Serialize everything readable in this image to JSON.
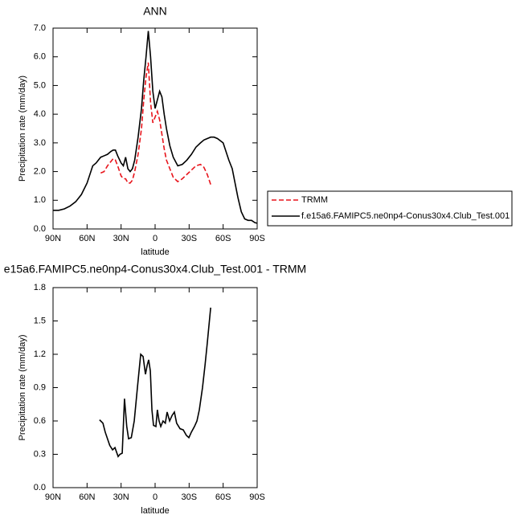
{
  "chart_data": [
    {
      "type": "line",
      "title": "ANN",
      "xlabel": "latitude",
      "ylabel": "Precipitation rate (mm/day)",
      "x": [
        90,
        85,
        80,
        75,
        70,
        65,
        60,
        55,
        52,
        50,
        48,
        45,
        42,
        39,
        37,
        35,
        33,
        30,
        28,
        26,
        24,
        22,
        20,
        18,
        15,
        12,
        10,
        8,
        6,
        4,
        2,
        0,
        -2,
        -4,
        -6,
        -8,
        -10,
        -13,
        -16,
        -20,
        -24,
        -28,
        -32,
        -36,
        -40,
        -43,
        -46,
        -49,
        -52,
        -55,
        -60,
        -65,
        -68,
        -70,
        -73,
        -76,
        -79,
        -82,
        -85,
        -88,
        -90
      ],
      "series": [
        {
          "name": "TRMM",
          "color": "#e8141b",
          "line_style": "dashed",
          "values": [
            null,
            null,
            null,
            null,
            null,
            null,
            null,
            null,
            null,
            null,
            1.95,
            2.0,
            2.2,
            2.35,
            2.45,
            2.4,
            2.2,
            1.85,
            1.75,
            1.75,
            1.6,
            1.6,
            1.7,
            2.0,
            2.6,
            3.5,
            4.5,
            5.3,
            5.8,
            4.4,
            3.7,
            3.9,
            4.1,
            3.8,
            3.3,
            2.8,
            2.4,
            2.1,
            1.8,
            1.65,
            1.75,
            1.9,
            2.05,
            2.2,
            2.25,
            2.15,
            1.9,
            1.55,
            null,
            null,
            null,
            null,
            null,
            null,
            null,
            null,
            null,
            null,
            null,
            null,
            null
          ]
        },
        {
          "name": "f.e15a6.FAMIPC5.ne0np4-Conus30x4.Club_Test.001",
          "color": "#000000",
          "line_style": "solid",
          "values": [
            0.65,
            0.65,
            0.7,
            0.8,
            0.95,
            1.2,
            1.6,
            2.2,
            2.3,
            2.4,
            2.5,
            2.55,
            2.6,
            2.7,
            2.75,
            2.75,
            2.55,
            2.3,
            2.2,
            2.5,
            2.1,
            2.0,
            2.1,
            2.4,
            3.2,
            4.2,
            5.2,
            6.0,
            6.9,
            6.0,
            4.8,
            4.2,
            4.5,
            4.8,
            4.6,
            4.0,
            3.5,
            2.9,
            2.5,
            2.2,
            2.25,
            2.4,
            2.6,
            2.85,
            3.0,
            3.1,
            3.15,
            3.2,
            3.2,
            3.15,
            3.0,
            2.4,
            2.1,
            1.7,
            1.1,
            0.6,
            0.35,
            0.3,
            0.3,
            0.22,
            0.2
          ]
        }
      ],
      "xlim": [
        90,
        -90
      ],
      "xticks": [
        {
          "value": 90,
          "label": "90N"
        },
        {
          "value": 60,
          "label": "60N"
        },
        {
          "value": 30,
          "label": "30N"
        },
        0,
        {
          "value": -30,
          "label": "30S"
        },
        {
          "value": -60,
          "label": "60S"
        },
        {
          "value": -90,
          "label": "90S"
        }
      ],
      "ylim": [
        0,
        7
      ],
      "yticks": [
        {
          "value": 0,
          "label": "0.0"
        },
        {
          "value": 1,
          "label": "1.0"
        },
        {
          "value": 2,
          "label": "2.0"
        },
        {
          "value": 3,
          "label": "3.0"
        },
        {
          "value": 4,
          "label": "4.0"
        },
        {
          "value": 5,
          "label": "5.0"
        },
        {
          "value": 6,
          "label": "6.0"
        },
        {
          "value": 7,
          "label": "7.0"
        }
      ],
      "grid": false,
      "legend": "right"
    },
    {
      "type": "line",
      "title": "e15a6.FAMIPC5.ne0np4-Conus30x4.Club_Test.001 - TRMM",
      "xlabel": "latitude",
      "ylabel": "Precipitation rate (mm/day)",
      "x": [
        49,
        46,
        44,
        42,
        40,
        37.5,
        35.4,
        32.6,
        31,
        29,
        27,
        25,
        23.4,
        21,
        18.4,
        15.6,
        12.7,
        10.6,
        8.5,
        7,
        5.7,
        4.2,
        2.8,
        1.4,
        -0.7,
        -2,
        -3.5,
        -5,
        -7,
        -9,
        -10.6,
        -12.8,
        -15,
        -17,
        -19,
        -22,
        -24.8,
        -27.6,
        -29.8,
        -32,
        -34.7,
        -36.9,
        -39,
        -41.8,
        -44,
        -46,
        -49
      ],
      "values": [
        0.61,
        0.58,
        0.5,
        0.44,
        0.38,
        0.34,
        0.36,
        0.28,
        0.3,
        0.31,
        0.8,
        0.55,
        0.44,
        0.45,
        0.6,
        0.9,
        1.2,
        1.18,
        1.02,
        1.1,
        1.15,
        1.05,
        0.7,
        0.56,
        0.55,
        0.7,
        0.6,
        0.55,
        0.6,
        0.58,
        0.68,
        0.6,
        0.65,
        0.68,
        0.58,
        0.53,
        0.52,
        0.47,
        0.45,
        0.5,
        0.55,
        0.6,
        0.7,
        0.9,
        1.1,
        1.3,
        1.62
      ],
      "color": "#000000",
      "xlim": [
        90,
        -90
      ],
      "xticks": [
        {
          "value": 90,
          "label": "90N"
        },
        {
          "value": 60,
          "label": "60N"
        },
        {
          "value": 30,
          "label": "30N"
        },
        0,
        {
          "value": -30,
          "label": "30S"
        },
        {
          "value": -60,
          "label": "60S"
        },
        {
          "value": -90,
          "label": "90S"
        }
      ],
      "ylim": [
        0,
        1.8
      ],
      "yticks": [
        {
          "value": 0,
          "label": "0.0"
        },
        {
          "value": 0.3,
          "label": "0.3"
        },
        {
          "value": 0.6,
          "label": "0.6"
        },
        {
          "value": 0.9,
          "label": "0.9"
        },
        {
          "value": 1.2,
          "label": "1.2"
        },
        {
          "value": 1.5,
          "label": "1.5"
        },
        {
          "value": 1.8,
          "label": "1.8"
        }
      ],
      "grid": false
    }
  ]
}
